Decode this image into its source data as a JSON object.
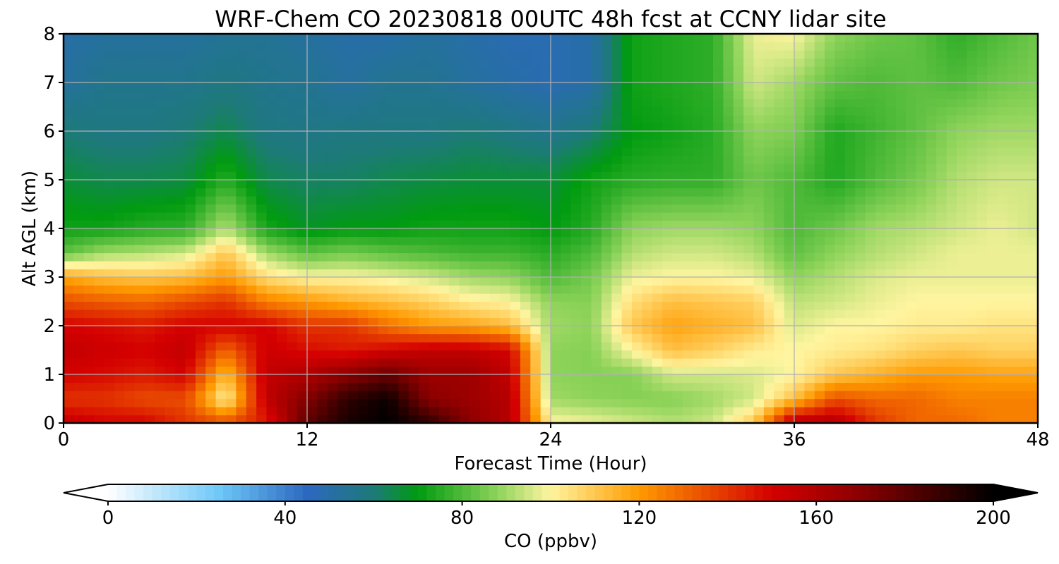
{
  "chart_data": {
    "type": "heatmap",
    "title": "WRF-Chem CO  20230818 00UTC 48h fcst at CCNY lidar site",
    "xlabel": "Forecast Time (Hour)",
    "ylabel": "Alt AGL (km)",
    "xlim": [
      0,
      48
    ],
    "ylim": [
      0,
      8
    ],
    "x_ticks": [
      "0",
      "12",
      "24",
      "36",
      "48"
    ],
    "y_ticks": [
      "0",
      "1",
      "2",
      "3",
      "4",
      "5",
      "6",
      "7",
      "8"
    ],
    "grid": true,
    "colorbar": {
      "label": "CO  (ppbv)",
      "range": [
        0,
        200
      ],
      "ticks": [
        "0",
        "40",
        "80",
        "120",
        "160",
        "200"
      ],
      "extend": "both",
      "stops": [
        {
          "value": 0,
          "color": "#ffffff"
        },
        {
          "value": 25,
          "color": "#6ec8f8"
        },
        {
          "value": 45,
          "color": "#2c68bf"
        },
        {
          "value": 60,
          "color": "#1d7a78"
        },
        {
          "value": 70,
          "color": "#009b0f"
        },
        {
          "value": 88,
          "color": "#8ed35a"
        },
        {
          "value": 100,
          "color": "#fff5a0"
        },
        {
          "value": 120,
          "color": "#ff9a00"
        },
        {
          "value": 150,
          "color": "#d40000"
        },
        {
          "value": 170,
          "color": "#8a0000"
        },
        {
          "value": 200,
          "color": "#000000"
        }
      ]
    },
    "x": [
      0,
      2,
      4,
      6,
      8,
      10,
      12,
      14,
      16,
      18,
      20,
      22,
      24,
      26,
      28,
      30,
      32,
      34,
      36,
      38,
      40,
      42,
      44,
      46,
      48
    ],
    "y": [
      0,
      0.5,
      1,
      1.5,
      2,
      2.5,
      3,
      3.5,
      4,
      5,
      6,
      7,
      8
    ],
    "z": [
      [
        155,
        150,
        150,
        140,
        135,
        145,
        180,
        195,
        200,
        190,
        170,
        158,
        100,
        98,
        95,
        92,
        95,
        110,
        160,
        160,
        140,
        130,
        130,
        125,
        125
      ],
      [
        140,
        140,
        135,
        135,
        100,
        155,
        172,
        190,
        198,
        170,
        165,
        158,
        90,
        88,
        87,
        87,
        90,
        95,
        112,
        135,
        130,
        130,
        125,
        125,
        125
      ],
      [
        150,
        148,
        145,
        150,
        112,
        155,
        160,
        170,
        178,
        165,
        165,
        155,
        88,
        87,
        87,
        95,
        95,
        96,
        100,
        110,
        115,
        120,
        120,
        118,
        118
      ],
      [
        155,
        152,
        150,
        155,
        130,
        152,
        148,
        145,
        150,
        155,
        155,
        150,
        88,
        87,
        100,
        112,
        108,
        102,
        100,
        102,
        104,
        108,
        110,
        108,
        108
      ],
      [
        150,
        148,
        145,
        150,
        150,
        150,
        140,
        140,
        128,
        120,
        118,
        112,
        90,
        88,
        110,
        118,
        115,
        112,
        96,
        100,
        100,
        102,
        102,
        104,
        104
      ],
      [
        135,
        132,
        130,
        135,
        140,
        125,
        120,
        115,
        112,
        108,
        102,
        100,
        88,
        87,
        105,
        112,
        110,
        108,
        93,
        95,
        98,
        100,
        100,
        100,
        100
      ],
      [
        118,
        112,
        110,
        112,
        120,
        105,
        100,
        100,
        98,
        95,
        90,
        88,
        80,
        85,
        98,
        100,
        100,
        98,
        88,
        92,
        96,
        98,
        98,
        98,
        98
      ],
      [
        82,
        90,
        92,
        95,
        110,
        90,
        82,
        85,
        82,
        80,
        78,
        78,
        75,
        80,
        92,
        95,
        95,
        92,
        82,
        88,
        92,
        95,
        98,
        98,
        98
      ],
      [
        72,
        72,
        75,
        76,
        92,
        73,
        68,
        70,
        70,
        72,
        72,
        72,
        70,
        75,
        88,
        90,
        90,
        88,
        80,
        84,
        90,
        92,
        95,
        98,
        95
      ],
      [
        66,
        64,
        64,
        65,
        75,
        64,
        62,
        62,
        64,
        65,
        66,
        66,
        66,
        72,
        75,
        76,
        76,
        84,
        80,
        74,
        80,
        85,
        92,
        95,
        95
      ],
      [
        60,
        58,
        58,
        60,
        64,
        58,
        57,
        58,
        58,
        58,
        60,
        58,
        56,
        60,
        70,
        72,
        75,
        88,
        86,
        74,
        78,
        82,
        88,
        90,
        90
      ],
      [
        52,
        56,
        56,
        56,
        58,
        56,
        55,
        52,
        55,
        55,
        52,
        50,
        48,
        50,
        72,
        74,
        76,
        95,
        90,
        82,
        80,
        82,
        80,
        84,
        86
      ],
      [
        50,
        52,
        52,
        52,
        54,
        54,
        52,
        50,
        50,
        52,
        50,
        48,
        48,
        50,
        72,
        74,
        76,
        98,
        100,
        88,
        84,
        82,
        76,
        80,
        84
      ]
    ]
  }
}
